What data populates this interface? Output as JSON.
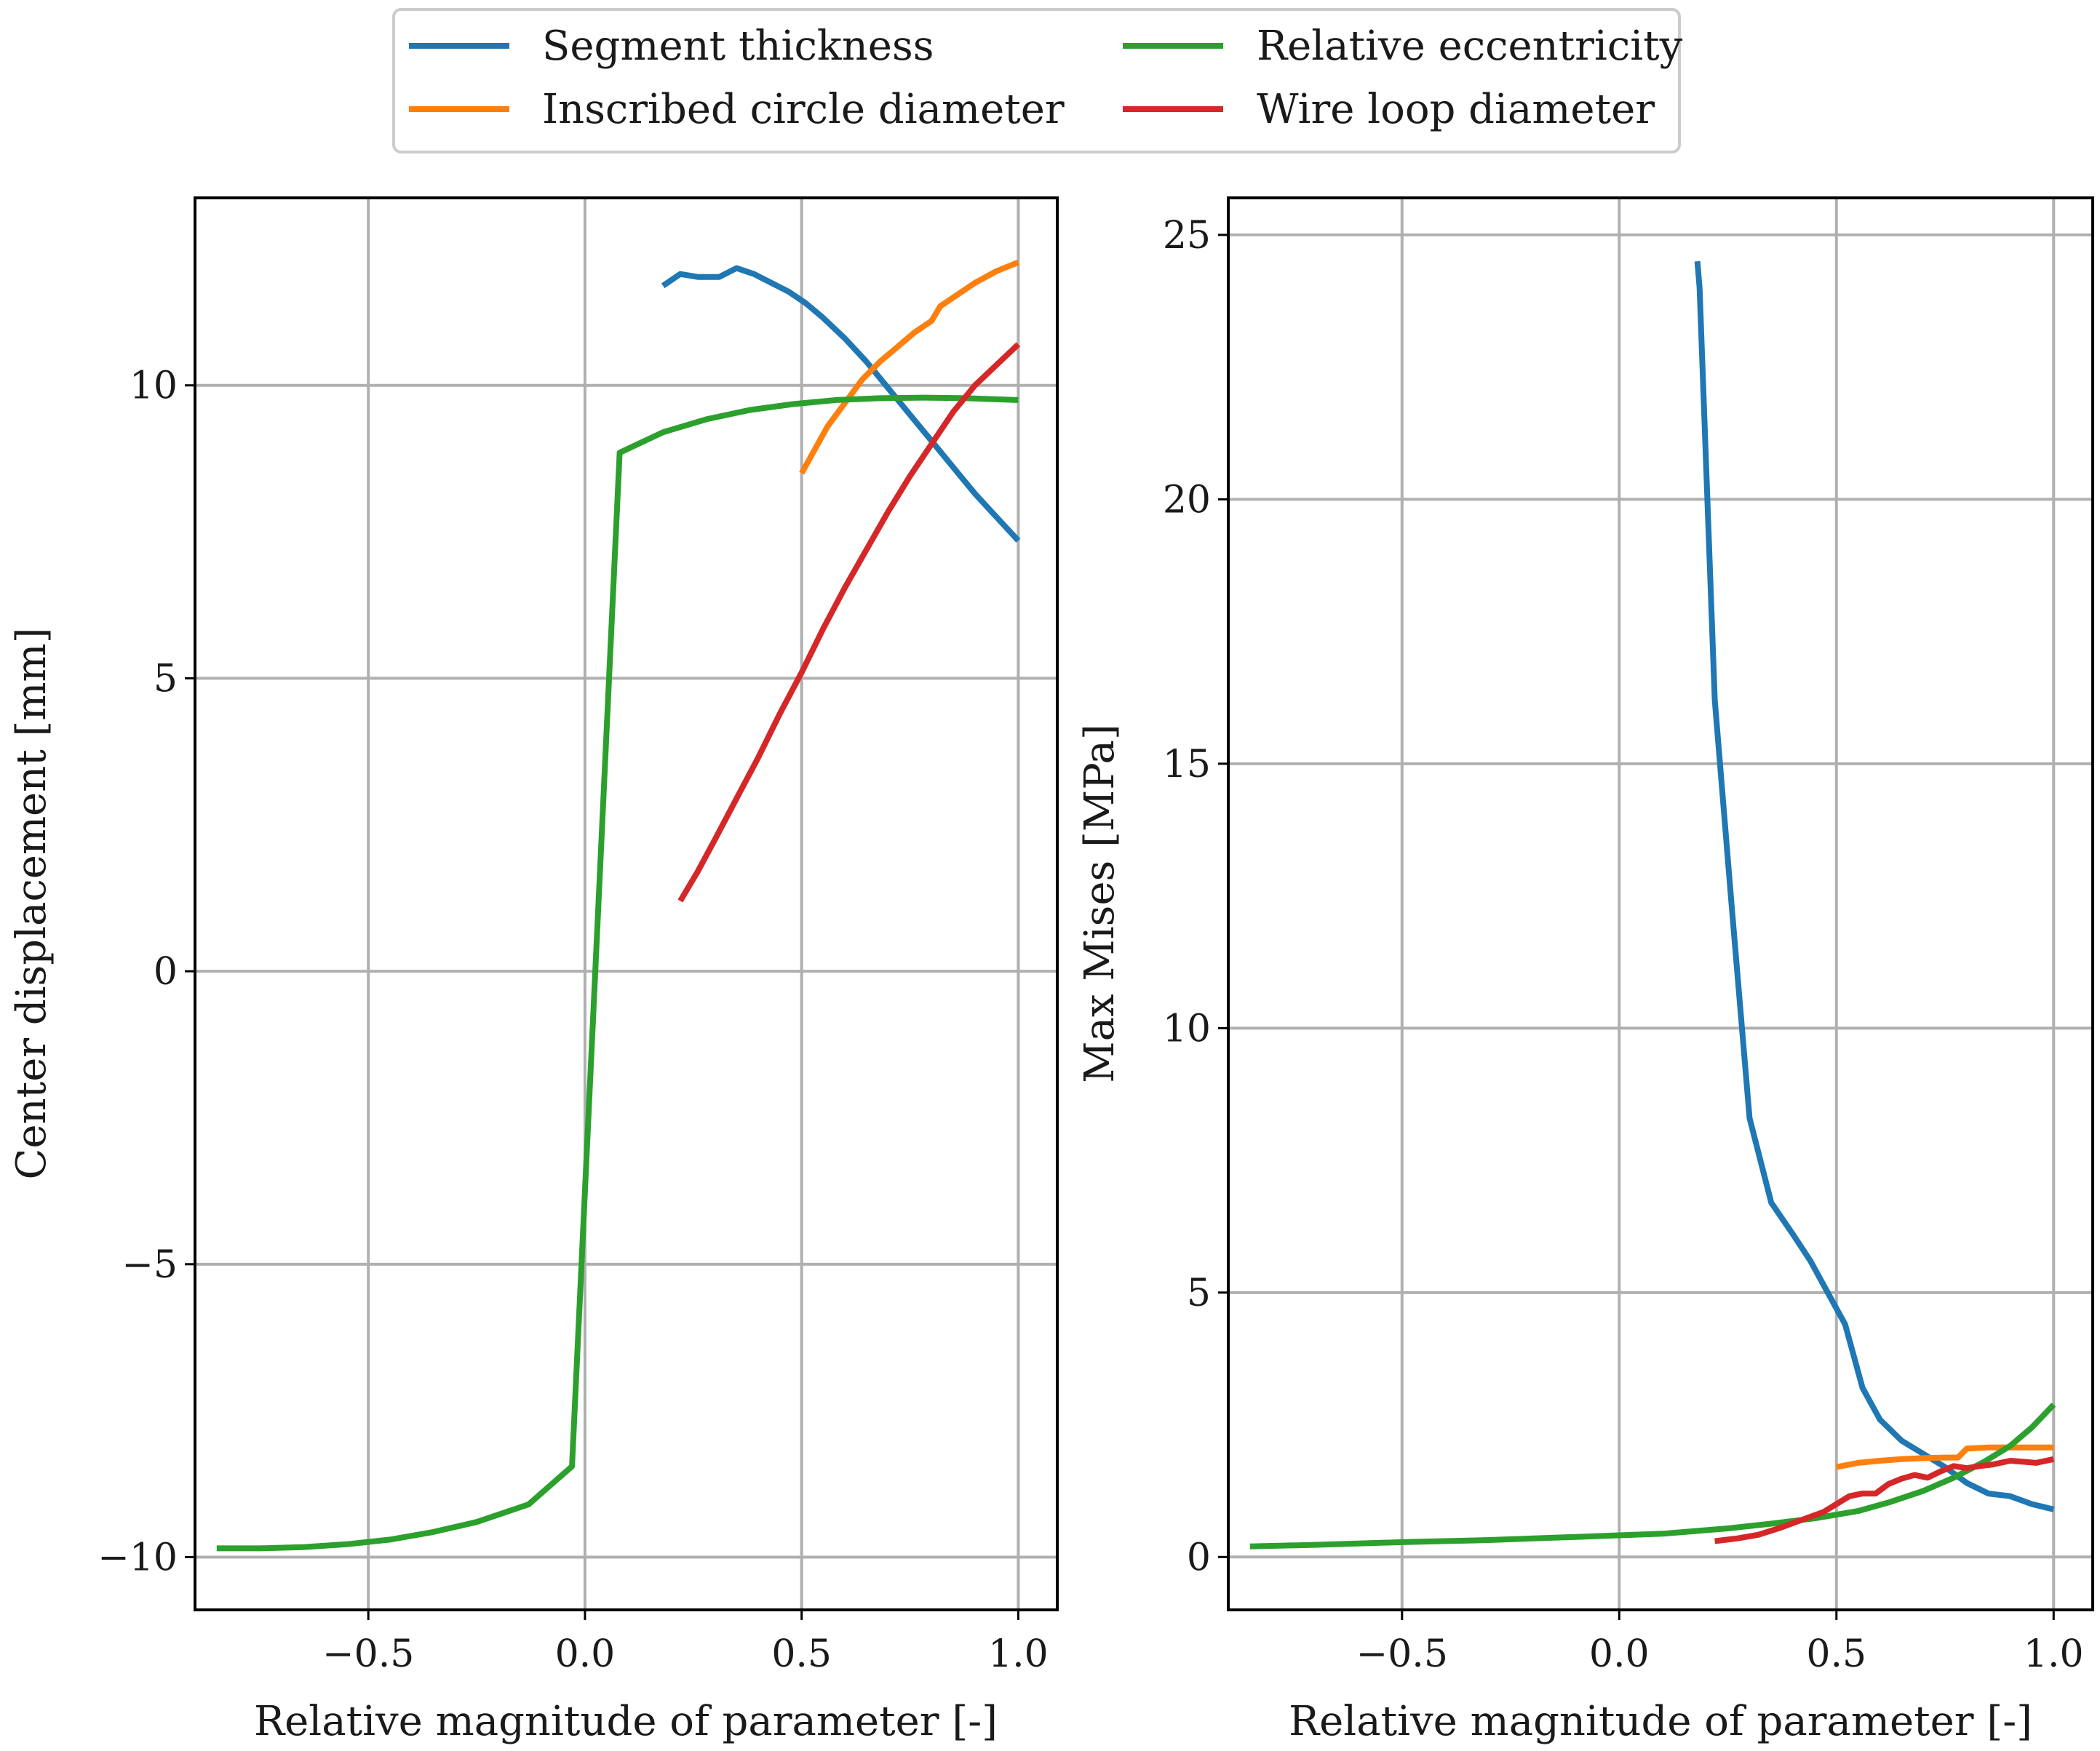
{
  "legend": {
    "entries": [
      {
        "name": "Segment thickness",
        "color": "#1f77b4"
      },
      {
        "name": "Inscribed circle diameter",
        "color": "#ff7f0e"
      },
      {
        "name": "Relative eccentricity",
        "color": "#2ca02c"
      },
      {
        "name": "Wire loop diameter",
        "color": "#d62728"
      }
    ]
  },
  "chart_data": [
    {
      "type": "line",
      "xlabel": "Relative magnitude of parameter [-]",
      "ylabel": "Center displacement [mm]",
      "xlim": [
        -0.9,
        1.09
      ],
      "ylim": [
        -10.9,
        13.2
      ],
      "xticks": [
        -0.5,
        0.0,
        0.5,
        1.0
      ],
      "xtick_labels": [
        "−0.5",
        "0.0",
        "0.5",
        "1.0"
      ],
      "yticks": [
        -10,
        -5,
        0,
        5,
        10
      ],
      "ytick_labels": [
        "−10",
        "−5",
        "0",
        "5",
        "10"
      ],
      "grid": true,
      "series": [
        {
          "name": "Segment thickness",
          "color": "#1f77b4",
          "x": [
            0.18,
            0.22,
            0.26,
            0.31,
            0.35,
            0.39,
            0.43,
            0.47,
            0.51,
            0.55,
            0.6,
            0.65,
            0.7,
            0.75,
            0.8,
            0.85,
            0.9,
            0.95,
            1.0
          ],
          "y": [
            11.7,
            11.9,
            11.85,
            11.85,
            12.0,
            11.9,
            11.75,
            11.6,
            11.4,
            11.15,
            10.8,
            10.4,
            9.95,
            9.5,
            9.05,
            8.6,
            8.15,
            7.75,
            7.35
          ]
        },
        {
          "name": "Inscribed circle diameter",
          "color": "#ff7f0e",
          "x": [
            0.5,
            0.53,
            0.56,
            0.6,
            0.64,
            0.68,
            0.72,
            0.76,
            0.8,
            0.82,
            0.86,
            0.9,
            0.95,
            1.0
          ],
          "y": [
            8.5,
            8.9,
            9.3,
            9.7,
            10.1,
            10.4,
            10.65,
            10.9,
            11.1,
            11.35,
            11.55,
            11.75,
            11.95,
            12.1
          ]
        },
        {
          "name": "Relative eccentricity",
          "color": "#2ca02c",
          "x": [
            -0.85,
            -0.75,
            -0.65,
            -0.55,
            -0.45,
            -0.35,
            -0.25,
            -0.13,
            -0.03,
            0.08,
            0.18,
            0.28,
            0.38,
            0.48,
            0.58,
            0.68,
            0.78,
            0.88,
            1.0
          ],
          "y": [
            -9.85,
            -9.85,
            -9.83,
            -9.78,
            -9.7,
            -9.57,
            -9.4,
            -9.1,
            -8.45,
            8.85,
            9.2,
            9.42,
            9.58,
            9.68,
            9.75,
            9.78,
            9.79,
            9.78,
            9.75
          ]
        },
        {
          "name": "Wire loop diameter",
          "color": "#d62728",
          "x": [
            0.22,
            0.26,
            0.3,
            0.35,
            0.4,
            0.45,
            0.5,
            0.55,
            0.6,
            0.65,
            0.7,
            0.75,
            0.8,
            0.85,
            0.9,
            0.95,
            1.0
          ],
          "y": [
            1.2,
            1.7,
            2.25,
            2.95,
            3.65,
            4.4,
            5.1,
            5.85,
            6.55,
            7.2,
            7.85,
            8.45,
            9.0,
            9.55,
            10.0,
            10.35,
            10.7
          ]
        }
      ]
    },
    {
      "type": "line",
      "xlabel": "Relative magnitude of parameter [-]",
      "ylabel": "Max Mises [MPa]",
      "xlim": [
        -0.9,
        1.09
      ],
      "ylim": [
        -1.0,
        25.7
      ],
      "xticks": [
        -0.5,
        0.0,
        0.5,
        1.0
      ],
      "xtick_labels": [
        "−0.5",
        "0.0",
        "0.5",
        "1.0"
      ],
      "yticks": [
        0,
        5,
        10,
        15,
        20,
        25
      ],
      "ytick_labels": [
        "0",
        "5",
        "10",
        "15",
        "20",
        "25"
      ],
      "grid": true,
      "series": [
        {
          "name": "Segment thickness",
          "color": "#1f77b4",
          "x": [
            0.18,
            0.185,
            0.22,
            0.26,
            0.3,
            0.35,
            0.4,
            0.44,
            0.48,
            0.52,
            0.56,
            0.6,
            0.65,
            0.7,
            0.75,
            0.8,
            0.85,
            0.9,
            0.95,
            1.0
          ],
          "y": [
            24.5,
            24.0,
            16.2,
            12.2,
            8.3,
            6.7,
            6.1,
            5.6,
            5.0,
            4.4,
            3.2,
            2.6,
            2.2,
            1.95,
            1.7,
            1.4,
            1.2,
            1.15,
            1.0,
            0.9
          ]
        },
        {
          "name": "Inscribed circle diameter",
          "color": "#ff7f0e",
          "x": [
            0.5,
            0.55,
            0.6,
            0.65,
            0.7,
            0.75,
            0.78,
            0.8,
            0.85,
            0.9,
            0.95,
            1.0
          ],
          "y": [
            1.7,
            1.78,
            1.82,
            1.85,
            1.87,
            1.88,
            1.88,
            2.05,
            2.07,
            2.07,
            2.07,
            2.07
          ]
        },
        {
          "name": "Relative eccentricity",
          "color": "#2ca02c",
          "x": [
            -0.85,
            -0.7,
            -0.5,
            -0.3,
            -0.1,
            0.1,
            0.25,
            0.35,
            0.45,
            0.55,
            0.62,
            0.7,
            0.77,
            0.84,
            0.9,
            0.95,
            1.0
          ],
          "y": [
            0.2,
            0.23,
            0.28,
            0.32,
            0.38,
            0.44,
            0.54,
            0.63,
            0.73,
            0.87,
            1.03,
            1.25,
            1.5,
            1.8,
            2.1,
            2.45,
            2.88
          ]
        },
        {
          "name": "Wire loop diameter",
          "color": "#d62728",
          "x": [
            0.22,
            0.27,
            0.32,
            0.37,
            0.42,
            0.47,
            0.5,
            0.53,
            0.56,
            0.59,
            0.62,
            0.65,
            0.68,
            0.71,
            0.74,
            0.77,
            0.8,
            0.83,
            0.86,
            0.9,
            0.93,
            0.96,
            1.0
          ],
          "y": [
            0.3,
            0.35,
            0.42,
            0.55,
            0.7,
            0.85,
            1.0,
            1.15,
            1.2,
            1.2,
            1.38,
            1.48,
            1.55,
            1.5,
            1.62,
            1.72,
            1.68,
            1.72,
            1.75,
            1.82,
            1.8,
            1.78,
            1.85
          ]
        }
      ]
    }
  ]
}
